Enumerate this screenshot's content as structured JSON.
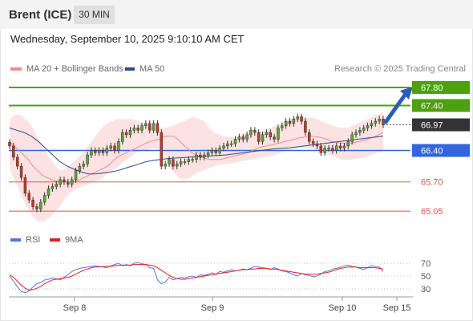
{
  "header": {
    "title": "Brent (ICE)",
    "timeframe": "30 MIN",
    "datetime": "Wednesday, September 10, 2025 9:10:10 AM CET",
    "credit": "Research © 2025 Trading Central"
  },
  "legend": {
    "bollinger": {
      "label": "MA 20 + Bollinger Bands",
      "color": "#f08c8c"
    },
    "ma50": {
      "label": "MA 50",
      "color": "#2b4c8f"
    },
    "rsi": {
      "label": "RSI",
      "color": "#5577dd"
    },
    "rsi_ma": {
      "label": "9MA",
      "color": "#e02020"
    }
  },
  "chart_data": [
    {
      "type": "candlestick",
      "ylim": [
        64.75,
        68.05
      ],
      "levels": [
        {
          "value": 67.8,
          "label": "67.80",
          "kind": "resistance",
          "color": "#4fa010"
        },
        {
          "value": 67.4,
          "label": "67.40",
          "kind": "resistance",
          "color": "#4fa010"
        },
        {
          "value": 66.97,
          "label": "66.97",
          "kind": "last",
          "color": "#333333"
        },
        {
          "value": 66.4,
          "label": "66.40",
          "kind": "pivot",
          "color": "#3366dd"
        },
        {
          "value": 65.7,
          "label": "65.70",
          "kind": "support",
          "color": "#e05050"
        },
        {
          "value": 65.05,
          "label": "65.05",
          "kind": "support",
          "color": "#e05050"
        }
      ],
      "x_labels": [
        "Sep 8",
        "Sep 9",
        "Sep 10",
        "Sep 15"
      ],
      "close": [
        66.5,
        66.25,
        66.05,
        65.8,
        65.45,
        65.3,
        65.15,
        65.1,
        65.25,
        65.4,
        65.55,
        65.6,
        65.65,
        65.75,
        65.7,
        65.65,
        65.75,
        65.95,
        66.05,
        66.1,
        66.3,
        66.4,
        66.35,
        66.4,
        66.35,
        66.45,
        66.5,
        66.4,
        66.6,
        66.8,
        66.75,
        66.85,
        66.9,
        66.85,
        66.95,
        67.0,
        66.85,
        67.0,
        66.8,
        66.05,
        66.1,
        66.2,
        66.05,
        66.1,
        66.15,
        66.15,
        66.2,
        66.2,
        66.3,
        66.25,
        66.3,
        66.35,
        66.4,
        66.35,
        66.45,
        66.5,
        66.55,
        66.55,
        66.65,
        66.7,
        66.65,
        66.75,
        66.85,
        66.8,
        66.6,
        66.75,
        66.8,
        66.7,
        66.65,
        66.9,
        66.95,
        67.05,
        67.0,
        67.1,
        67.15,
        67.05,
        66.8,
        66.6,
        66.55,
        66.5,
        66.35,
        66.45,
        66.45,
        66.4,
        66.5,
        66.45,
        66.5,
        66.6,
        66.75,
        66.8,
        66.85,
        66.9,
        66.95,
        67.0,
        67.05,
        67.1,
        66.97
      ],
      "bollinger_mid": [
        66.6,
        66.5,
        66.4,
        66.3,
        66.2,
        66.05,
        65.95,
        65.85,
        65.8,
        65.75,
        65.72,
        65.7,
        65.7,
        65.7,
        65.72,
        65.75,
        65.8,
        65.85,
        65.9,
        65.95,
        66.0,
        66.05,
        66.15,
        66.25,
        66.3,
        66.35,
        66.4,
        66.45,
        66.5,
        66.55,
        66.6,
        66.62,
        66.65,
        66.7,
        66.72,
        66.72,
        66.65,
        66.55,
        66.45,
        66.35,
        66.3,
        66.25,
        66.22,
        66.2,
        66.2,
        66.2,
        66.22,
        66.25,
        66.28,
        66.3,
        66.32,
        66.35,
        66.4,
        66.45,
        66.48,
        66.5,
        66.52,
        66.55,
        66.57,
        66.6,
        66.62,
        66.65,
        66.68,
        66.7,
        66.72,
        66.72,
        66.7,
        66.68,
        66.65,
        66.6,
        66.58,
        66.56,
        66.55,
        66.56,
        66.58,
        66.6,
        66.63,
        66.66,
        66.7,
        66.75,
        66.8
      ],
      "bollinger_upper": [
        67.1,
        67.2,
        67.2,
        67.1,
        67.0,
        66.8,
        66.6,
        66.4,
        66.2,
        66.05,
        65.95,
        66.0,
        66.1,
        66.2,
        66.3,
        66.45,
        66.6,
        66.75,
        66.9,
        67.0,
        67.05,
        67.1,
        67.1,
        67.1,
        67.1,
        67.05,
        67.0,
        66.95,
        66.9,
        66.9,
        66.9,
        66.92,
        66.95,
        67.0,
        67.05,
        67.1,
        67.15,
        67.1,
        67.05,
        66.9,
        66.8,
        66.75,
        66.7,
        66.7,
        66.7,
        66.72,
        66.75,
        66.78,
        66.8,
        66.82,
        66.85,
        66.9,
        66.95,
        67.0,
        67.05,
        67.1,
        67.15,
        67.15,
        67.15,
        67.12,
        67.1,
        67.05,
        67.0,
        66.95,
        66.92,
        66.9,
        66.9,
        66.95,
        67.0,
        67.05,
        67.1,
        67.15,
        67.2,
        67.25
      ],
      "bollinger_lower": [
        66.0,
        65.7,
        65.4,
        65.1,
        64.9,
        64.8,
        64.85,
        64.95,
        65.1,
        65.3,
        65.45,
        65.55,
        65.6,
        65.65,
        65.7,
        65.75,
        65.85,
        65.95,
        66.05,
        66.15,
        66.25,
        66.35,
        66.4,
        66.42,
        66.45,
        66.4,
        66.2,
        65.95,
        65.8,
        65.75,
        65.8,
        65.9,
        65.95,
        66.0,
        66.05,
        66.08,
        66.1,
        66.12,
        66.15,
        66.18,
        66.2,
        66.22,
        66.25,
        66.27,
        66.3,
        66.35,
        66.4,
        66.42,
        66.45,
        66.45,
        66.45,
        66.4,
        66.35,
        66.3,
        66.25,
        66.2,
        66.2,
        66.2,
        66.22,
        66.25,
        66.3,
        66.35,
        66.4
      ],
      "ma50": [
        66.9,
        66.85,
        66.8,
        66.72,
        66.6,
        66.45,
        66.3,
        66.15,
        66.05,
        65.98,
        65.92,
        65.88,
        65.88,
        65.9,
        65.92,
        65.95,
        66.0,
        66.05,
        66.1,
        66.15,
        66.18,
        66.2,
        66.22,
        66.23,
        66.24,
        66.25,
        66.26,
        66.27,
        66.28,
        66.29,
        66.3,
        66.32,
        66.34,
        66.36,
        66.38,
        66.4,
        66.42,
        66.44,
        66.45,
        66.46,
        66.48,
        66.5,
        66.52,
        66.54,
        66.56,
        66.58,
        66.6,
        66.62,
        66.64,
        66.66,
        66.68,
        66.7,
        66.72
      ]
    },
    {
      "type": "line",
      "ylim": [
        20,
        85
      ],
      "y_ticks": [
        70,
        50,
        30
      ],
      "series": [
        {
          "name": "RSI",
          "values": [
            50,
            42,
            33,
            26,
            24,
            27,
            33,
            38,
            40,
            44,
            45,
            47,
            46,
            44,
            48,
            52,
            57,
            60,
            62,
            63,
            64,
            65,
            66,
            65,
            64,
            63,
            66,
            68,
            70,
            66,
            68,
            66,
            70,
            71,
            69,
            68,
            63,
            62,
            44,
            38,
            41,
            48,
            44,
            46,
            48,
            47,
            49,
            50,
            48,
            52,
            51,
            53,
            55,
            53,
            57,
            56,
            58,
            60,
            58,
            59,
            61,
            60,
            62,
            65,
            64,
            63,
            62,
            60,
            63,
            61,
            58,
            57,
            55,
            52,
            50,
            54,
            52,
            51,
            49,
            50,
            53,
            57,
            58,
            61,
            62,
            64,
            66,
            67,
            65,
            64,
            62,
            60,
            63,
            66,
            65,
            64,
            57
          ]
        },
        {
          "name": "9MA",
          "values": [
            52,
            48,
            42,
            36,
            31,
            28,
            29,
            31,
            34,
            38,
            41,
            44,
            45,
            46,
            47,
            48,
            50,
            53,
            56,
            59,
            61,
            63,
            64,
            64,
            65,
            65,
            65,
            66,
            67,
            67,
            67,
            67,
            68,
            68,
            68,
            68,
            67,
            66,
            63,
            59,
            55,
            51,
            48,
            46,
            45,
            45,
            46,
            47,
            48,
            49,
            50,
            51,
            52,
            53,
            54,
            55,
            56,
            57,
            58,
            59,
            60,
            60,
            61,
            61,
            62,
            62,
            62,
            61,
            61,
            60,
            59,
            58,
            57,
            56,
            55,
            54,
            53,
            53,
            53,
            53,
            54,
            55,
            56,
            58,
            60,
            62,
            63,
            64,
            64,
            64,
            63,
            63,
            63,
            63,
            63,
            62,
            61
          ]
        }
      ]
    }
  ]
}
